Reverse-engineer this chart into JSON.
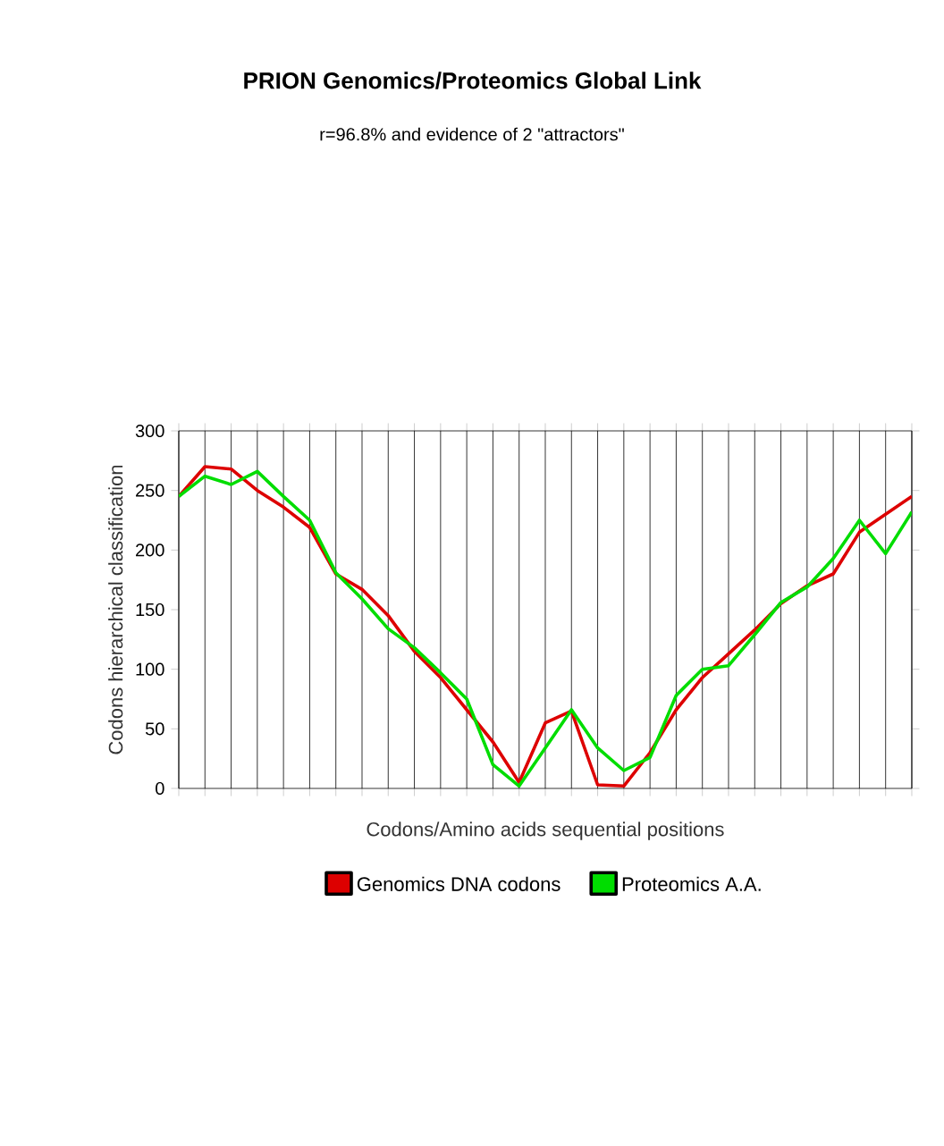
{
  "chart_data": {
    "type": "line",
    "title": "PRION Genomics/Proteomics Global Link",
    "subtitle": "r=96.8% and evidence of 2 \"attractors\"",
    "xlabel": "Codons/Amino acids sequential positions",
    "ylabel": "Codons hierarchical classification",
    "categories": [
      null,
      null,
      null,
      null,
      null,
      null,
      null,
      null,
      null,
      null,
      null,
      null,
      null,
      null,
      null,
      null,
      null,
      null,
      null,
      null,
      null,
      null,
      null,
      null,
      null,
      null,
      null,
      null,
      null
    ],
    "series": [
      {
        "name": "Genomics DNA codons",
        "color": "#dd0000",
        "values": [
          245,
          270,
          268,
          250,
          236,
          219,
          180,
          167,
          145,
          115,
          93,
          66,
          39,
          5,
          55,
          65,
          3,
          2,
          30,
          66,
          93,
          113,
          133,
          155,
          170,
          180,
          215,
          230,
          245
        ]
      },
      {
        "name": "Proteomics A.A.",
        "color": "#00dd00",
        "values": [
          245,
          262,
          255,
          266,
          245,
          225,
          181,
          159,
          134,
          118,
          97,
          75,
          20,
          2,
          34,
          66,
          34,
          15,
          26,
          78,
          100,
          103,
          129,
          156,
          169,
          193,
          225,
          197,
          232
        ]
      }
    ],
    "ylim": [
      0,
      300
    ],
    "yticks": [
      0,
      50,
      100,
      150,
      200,
      250,
      300
    ],
    "grid": "x",
    "legend": "bottom",
    "line_style": "solid",
    "marker": "none"
  }
}
